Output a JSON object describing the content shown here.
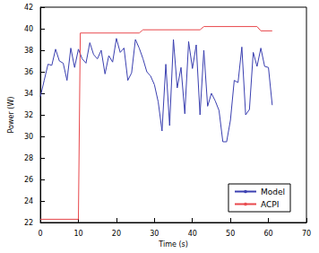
{
  "chart_data": {
    "type": "line",
    "x_label": "Time (s)",
    "y_label": "Power (W)",
    "xlim": [
      0,
      70
    ],
    "xticks": [
      0,
      10,
      20,
      30,
      40,
      50,
      60,
      70
    ],
    "ylim": [
      22,
      42
    ],
    "yticks": [
      22,
      24,
      26,
      28,
      30,
      32,
      34,
      36,
      38,
      40,
      42
    ],
    "grid": false,
    "legend": "lower right",
    "series": [
      {
        "name": "Model",
        "color": "#3a3fb0",
        "marker": "none",
        "line_style": "solid",
        "x": [
          0,
          1,
          2,
          3,
          4,
          5,
          6,
          7,
          8,
          9,
          10,
          11,
          12,
          13,
          14,
          15,
          16,
          17,
          18,
          19,
          20,
          21,
          22,
          23,
          24,
          25,
          26,
          27,
          28,
          29,
          30,
          31,
          32,
          33,
          34,
          35,
          36,
          37,
          38,
          39,
          40,
          41,
          42,
          43,
          44,
          45,
          46,
          47,
          48,
          49,
          50,
          51,
          52,
          53,
          54,
          55,
          56,
          57,
          58,
          59,
          60,
          61
        ],
        "values": [
          33.7,
          35.2,
          36.7,
          36.6,
          38.1,
          37.0,
          36.8,
          35.2,
          38.2,
          36.4,
          38.1,
          37.2,
          36.8,
          38.7,
          37.6,
          37.2,
          38.0,
          35.8,
          37.5,
          36.9,
          39.1,
          37.8,
          38.2,
          35.2,
          35.9,
          39.0,
          38.2,
          37.2,
          36.0,
          35.6,
          34.8,
          33.2,
          30.5,
          36.7,
          31.0,
          39.0,
          34.5,
          36.4,
          32.1,
          38.8,
          36.3,
          38.5,
          32.0,
          38.0,
          32.8,
          34.0,
          33.3,
          32.4,
          29.5,
          29.5,
          31.5,
          35.2,
          35.0,
          38.3,
          32.0,
          32.5,
          37.8,
          36.5,
          38.2,
          36.5,
          36.4,
          32.9
        ]
      },
      {
        "name": "ACPI",
        "color": "#e8474b",
        "marker": "none",
        "line_style": "solid",
        "x": [
          0,
          10,
          10.5,
          26,
          27,
          42,
          43,
          57,
          58,
          61
        ],
        "values": [
          22.3,
          22.3,
          39.6,
          39.6,
          39.9,
          39.9,
          40.2,
          40.2,
          39.8,
          39.8
        ]
      }
    ]
  }
}
